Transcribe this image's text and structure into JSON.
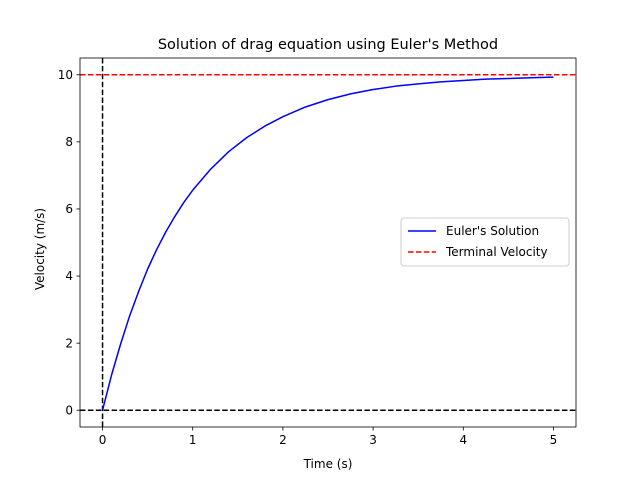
{
  "chart_data": {
    "type": "line",
    "title": "Solution of drag equation using Euler's Method",
    "xlabel": "Time (s)",
    "ylabel": "Velocity (m/s)",
    "xlim": [
      -0.25,
      5.25
    ],
    "ylim": [
      -0.5,
      10.5
    ],
    "xticks": [
      0,
      1,
      2,
      3,
      4,
      5
    ],
    "yticks": [
      0,
      2,
      4,
      6,
      8,
      10
    ],
    "grid": false,
    "legend_position": "center-right",
    "series": [
      {
        "name": "Euler's Solution",
        "color": "#0000ff",
        "style": "solid",
        "x": [
          0,
          0.1,
          0.2,
          0.3,
          0.4,
          0.5,
          0.6,
          0.7,
          0.8,
          0.9,
          1.0,
          1.2,
          1.4,
          1.6,
          1.8,
          2.0,
          2.25,
          2.5,
          2.75,
          3.0,
          3.25,
          3.5,
          3.75,
          4.0,
          4.25,
          4.5,
          4.75,
          5.0
        ],
        "y": [
          0,
          1.05,
          1.97,
          2.81,
          3.54,
          4.21,
          4.79,
          5.31,
          5.77,
          6.19,
          6.56,
          7.19,
          7.71,
          8.13,
          8.47,
          8.75,
          9.04,
          9.26,
          9.43,
          9.56,
          9.66,
          9.73,
          9.79,
          9.83,
          9.87,
          9.89,
          9.91,
          9.93
        ]
      },
      {
        "name": "Terminal Velocity",
        "color": "#ff0000",
        "style": "dashed",
        "x": [
          -0.25,
          5.25
        ],
        "y": [
          10,
          10
        ]
      }
    ],
    "reference_lines": [
      {
        "orientation": "vertical",
        "value": 0,
        "color": "#000000",
        "style": "dashed"
      },
      {
        "orientation": "horizontal",
        "value": 0,
        "color": "#000000",
        "style": "dashed"
      }
    ]
  }
}
